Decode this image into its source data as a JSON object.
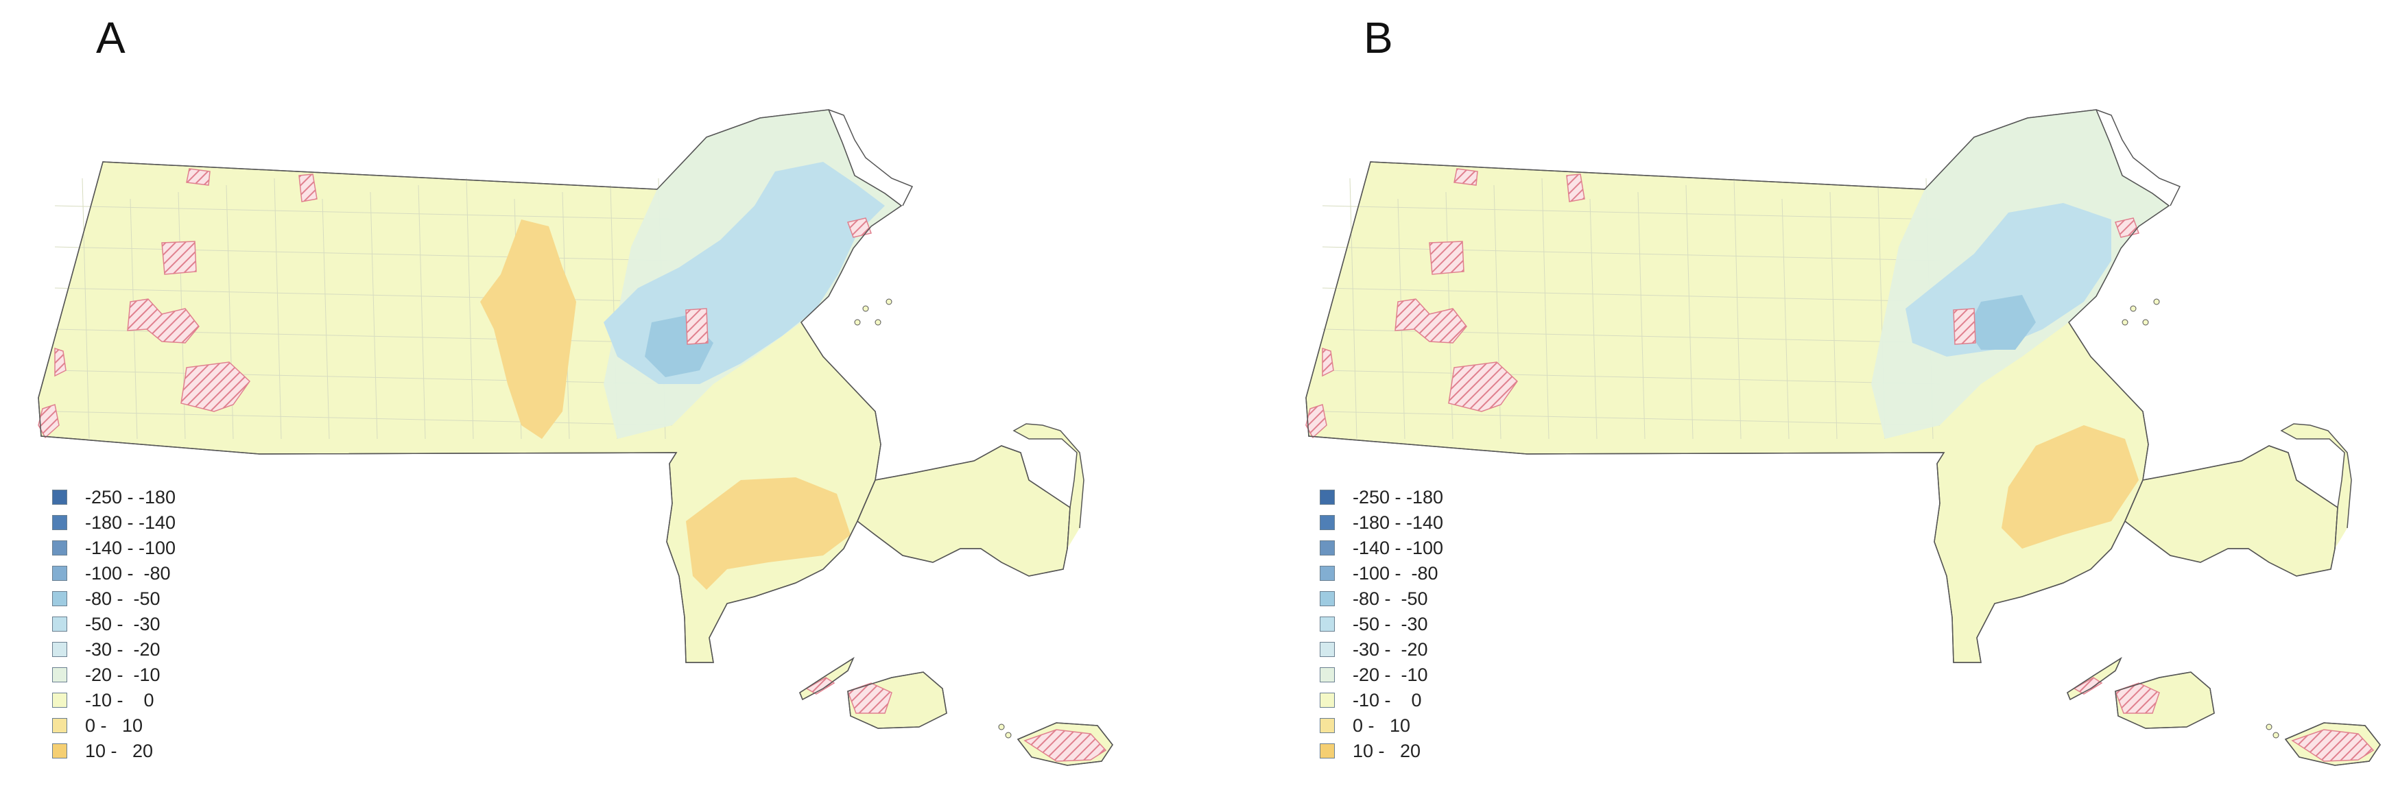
{
  "panels": [
    {
      "label": "A",
      "mode": "A"
    },
    {
      "label": "B",
      "mode": "B"
    }
  ],
  "legend": {
    "classes": [
      {
        "label": "-250 - -180",
        "color": "#3f6ea8"
      },
      {
        "label": "-180 - -140",
        "color": "#4f7fb6"
      },
      {
        "label": "-140 - -100",
        "color": "#6a94c0"
      },
      {
        "label": "-100 -  -80",
        "color": "#82aed2"
      },
      {
        "label": "-80 -  -50",
        "color": "#9ecbe1"
      },
      {
        "label": "-50 -  -30",
        "color": "#bfe0ec"
      },
      {
        "label": "-30 -  -20",
        "color": "#d3e9ee"
      },
      {
        "label": "-20 -  -10",
        "color": "#e3f1e0"
      },
      {
        "label": "-10 -    0",
        "color": "#f4f8c6"
      },
      {
        "label": "0 -   10",
        "color": "#f7e49a"
      },
      {
        "label": "10 -   20",
        "color": "#f5cf72"
      }
    ]
  },
  "map_colors": {
    "base": "#f4f8c6",
    "green": "#e3f1e0",
    "light_blue": "#d3e9ee",
    "blue": "#bfe0ec",
    "mid_blue": "#9ecbe1",
    "orange": "#f7d98b",
    "hatch": "#e0808e",
    "outline": "#555555"
  }
}
